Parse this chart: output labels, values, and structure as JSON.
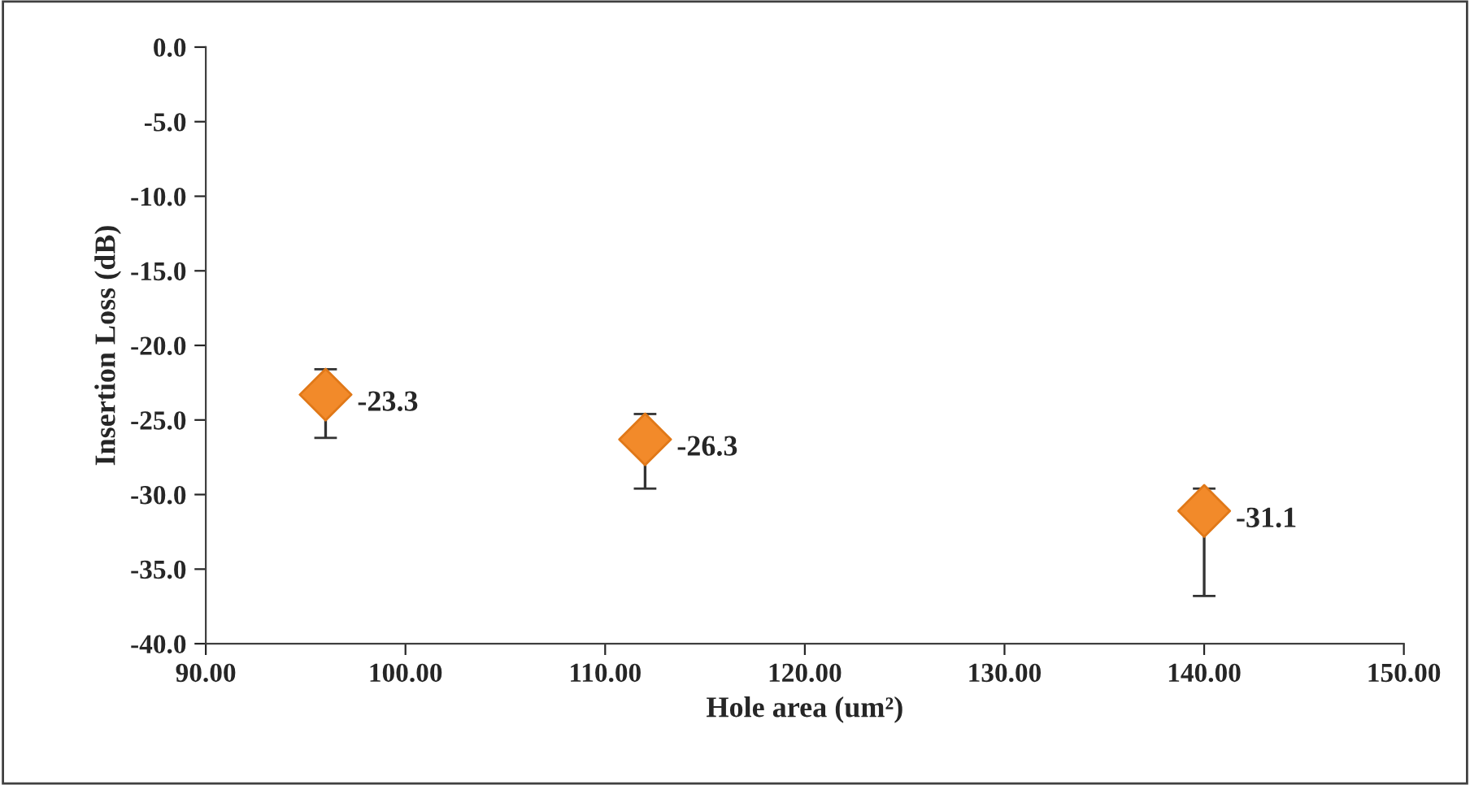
{
  "chart_data": {
    "type": "scatter",
    "xlabel": "Hole area (um²)",
    "ylabel": "Insertion Loss (dB)",
    "x": [
      96,
      112,
      140
    ],
    "series": [
      {
        "color": "#f28a2a",
        "values": [
          -23.3,
          -26.3,
          -31.1
        ],
        "errors": [
          [
            -26.2,
            -21.6
          ],
          [
            -29.6,
            -24.6
          ],
          [
            -36.8,
            -29.6
          ]
        ]
      }
    ],
    "data_labels": true,
    "marker": "diamond",
    "grid": false,
    "legend": false,
    "xlim": [
      90,
      150
    ],
    "xticks": [
      {
        "value": 90,
        "label": "90.00"
      },
      {
        "value": 100,
        "label": "100.00"
      },
      {
        "value": 110,
        "label": "110.00"
      },
      {
        "value": 120,
        "label": "120.00"
      },
      {
        "value": 130,
        "label": "130.00"
      },
      {
        "value": 140,
        "label": "140.00"
      },
      {
        "value": 150,
        "label": "150.00"
      }
    ],
    "ylim": [
      -40,
      0
    ],
    "yticks": [
      {
        "value": -40,
        "label": "-40.0"
      },
      {
        "value": -35,
        "label": "-35.0"
      },
      {
        "value": -30,
        "label": "-30.0"
      },
      {
        "value": -25,
        "label": "-25.0"
      },
      {
        "value": -20,
        "label": "-20.0"
      },
      {
        "value": -15,
        "label": "-15.0"
      },
      {
        "value": -10,
        "label": "-10.0"
      },
      {
        "value": -5,
        "label": "-5.0"
      },
      {
        "value": 0,
        "label": "0.0"
      }
    ]
  }
}
